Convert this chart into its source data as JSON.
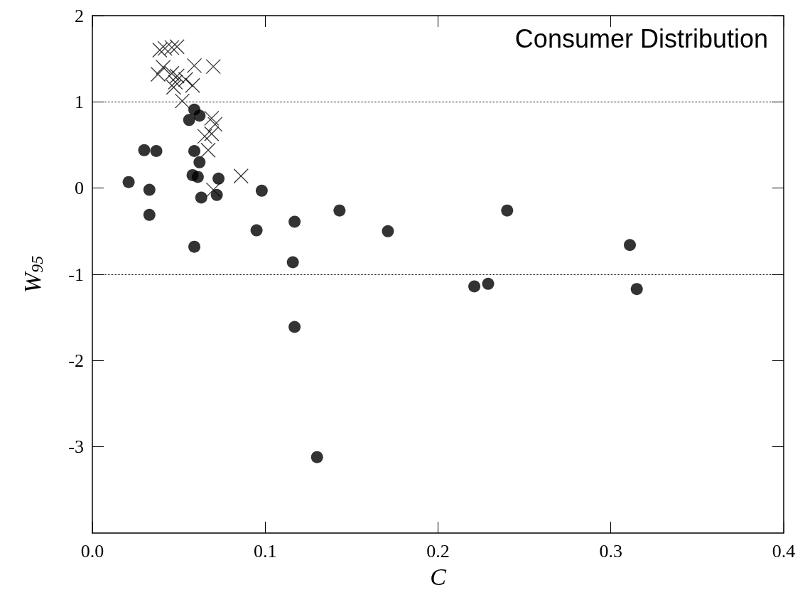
{
  "chart_data": {
    "type": "scatter",
    "xlabel": "C",
    "ylabel": "W$_{95}$",
    "annotations": [
      "Consumer Distribution"
    ],
    "xlim": [
      0,
      0.4
    ],
    "xticks": [
      {
        "value": 0,
        "label": "0.0"
      },
      0.1,
      0.2,
      0.3,
      0.4
    ],
    "ylim": [
      -4,
      2
    ],
    "yticks": [
      -3,
      -2,
      -1,
      0,
      1,
      2
    ],
    "ref_lines": [
      {
        "axis": "y",
        "value": 1,
        "color": "#000000",
        "line_style": "dotted"
      },
      {
        "axis": "y",
        "value": -1,
        "color": "#000000",
        "line_style": "dotted"
      }
    ],
    "series": [
      {
        "color": "#000000",
        "marker": "cross",
        "x": [
          0.039,
          0.042,
          0.046,
          0.049,
          0.059,
          0.07,
          0.038,
          0.041,
          0.046,
          0.049,
          0.048,
          0.054,
          0.058,
          0.047,
          0.052,
          0.069,
          0.071,
          0.065,
          0.069,
          0.067,
          0.086,
          0.07
        ],
        "values": [
          1.6,
          1.62,
          1.63,
          1.64,
          1.42,
          1.41,
          1.32,
          1.4,
          1.33,
          1.3,
          1.23,
          1.26,
          1.19,
          1.17,
          1.01,
          0.81,
          0.74,
          0.6,
          0.63,
          0.44,
          0.14,
          -0.02
        ]
      },
      {
        "color": "#000000",
        "marker": "circle",
        "x": [
          0.021,
          0.03,
          0.037,
          0.033,
          0.033,
          0.059,
          0.059,
          0.062,
          0.056,
          0.059,
          0.062,
          0.058,
          0.061,
          0.073,
          0.063,
          0.072,
          0.098,
          0.095,
          0.117,
          0.116,
          0.117,
          0.143,
          0.171,
          0.221,
          0.229,
          0.24,
          0.13,
          0.311,
          0.315
        ],
        "values": [
          0.07,
          0.44,
          0.43,
          -0.02,
          -0.31,
          -0.68,
          0.91,
          0.84,
          0.79,
          0.43,
          0.3,
          0.15,
          0.13,
          0.11,
          -0.11,
          -0.08,
          -0.03,
          -0.49,
          -0.39,
          -0.86,
          -1.61,
          -0.26,
          -0.5,
          -1.14,
          -1.11,
          -0.26,
          -3.12,
          -0.66,
          -1.17
        ]
      }
    ]
  }
}
